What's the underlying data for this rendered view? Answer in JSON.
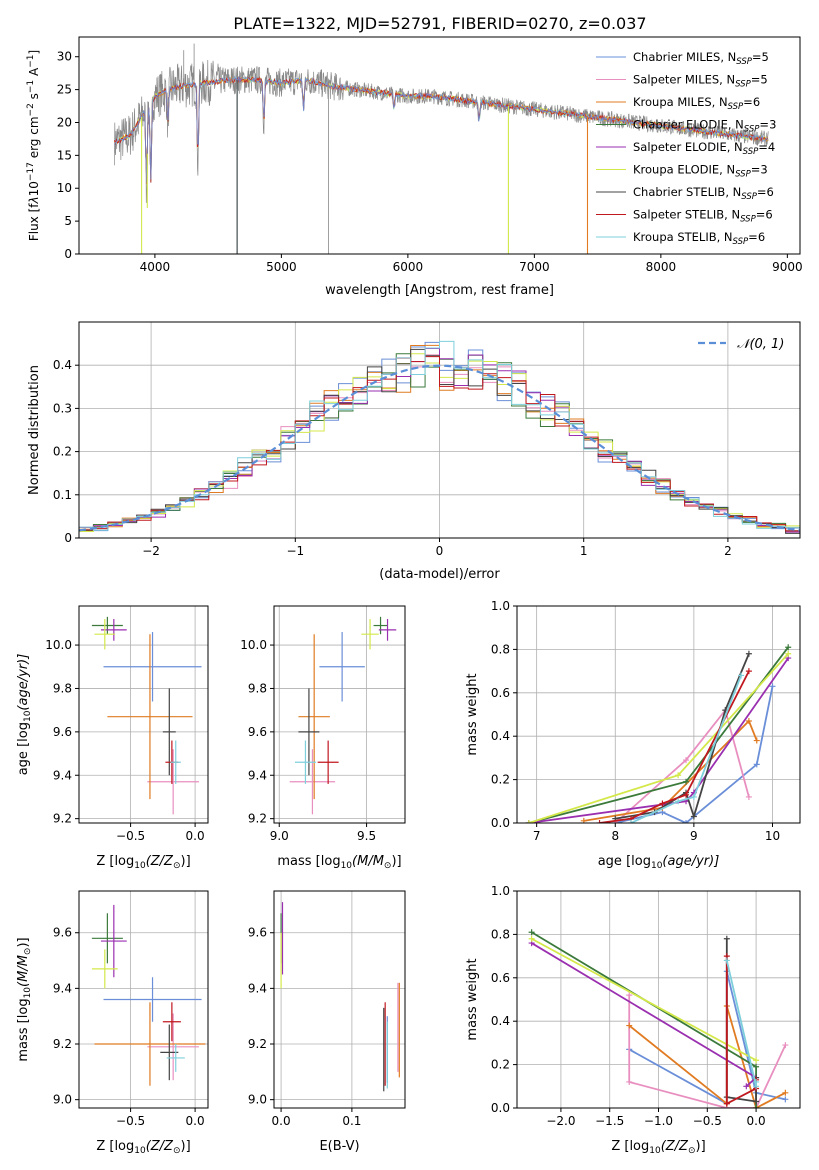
{
  "figure": {
    "title": "PLATE=1322, MJD=52791, FIBERID=0270, z=0.037"
  },
  "colors": {
    "models": [
      "#6a8fd8",
      "#e88fbf",
      "#e07b22",
      "#3b7a3b",
      "#9a2fb0",
      "#d4e84a",
      "#444444",
      "#c0181f",
      "#7ecfdc"
    ],
    "data": "#888888",
    "gaussian": "#5a8fd8",
    "grid": "#b0b0b0"
  },
  "legend": {
    "models": [
      {
        "label": "Chabrier MILES, N",
        "nssp": "5"
      },
      {
        "label": "Salpeter MILES, N",
        "nssp": "5"
      },
      {
        "label": "Kroupa MILES, N",
        "nssp": "6"
      },
      {
        "label": "Chabrier ELODIE, N",
        "nssp": "3"
      },
      {
        "label": "Salpeter ELODIE, N",
        "nssp": "4"
      },
      {
        "label": "Kroupa ELODIE, N",
        "nssp": "3"
      },
      {
        "label": "Chabrier STELIB, N",
        "nssp": "6"
      },
      {
        "label": "Salpeter STELIB, N",
        "nssp": "6"
      },
      {
        "label": "Kroupa STELIB, N",
        "nssp": "6"
      }
    ],
    "nssp_sub": "SSP",
    "gaussian_label": "𝒩(0, 1)"
  },
  "chart_data": [
    {
      "id": "spectrum",
      "type": "line",
      "xlabel": "wavelength [Angstrom, rest frame]",
      "ylabel": "Flux [f",
      "ylabel_rest": "10",
      "ylabel_exp": "−17",
      "ylabel_units": " erg cm",
      "ylabel_units_exp": "−2",
      "ylabel_units2": " s",
      "ylabel_units2_exp": "−1",
      "ylabel_units3": " A",
      "ylabel_units3_exp": "−1",
      "ylabel_units4": "]",
      "xlim": [
        3400,
        9100
      ],
      "ylim": [
        0,
        33
      ],
      "xticks": [
        4000,
        5000,
        6000,
        7000,
        8000,
        9000
      ],
      "yticks": [
        0,
        5,
        10,
        15,
        20,
        25,
        30
      ],
      "continuum": [
        [
          3680,
          17
        ],
        [
          3800,
          18
        ],
        [
          3900,
          21
        ],
        [
          4000,
          24
        ],
        [
          4100,
          25
        ],
        [
          4200,
          25.5
        ],
        [
          4400,
          26
        ],
        [
          4600,
          26.5
        ],
        [
          4800,
          26.5
        ],
        [
          5000,
          26
        ],
        [
          5200,
          26.5
        ],
        [
          5400,
          25.5
        ],
        [
          5600,
          25
        ],
        [
          5800,
          24.5
        ],
        [
          6000,
          24
        ],
        [
          6200,
          24
        ],
        [
          6400,
          23.5
        ],
        [
          6600,
          23
        ],
        [
          6800,
          22.5
        ],
        [
          7000,
          22
        ],
        [
          7200,
          21.5
        ],
        [
          7400,
          21
        ],
        [
          7600,
          20.5
        ],
        [
          7800,
          20
        ],
        [
          8000,
          19.5
        ],
        [
          8200,
          19
        ],
        [
          8400,
          18.5
        ],
        [
          8600,
          18
        ],
        [
          8850,
          17.5
        ]
      ],
      "absorptions": [
        [
          3934,
          10
        ],
        [
          3968,
          11
        ],
        [
          4102,
          20
        ],
        [
          4340,
          14
        ],
        [
          4861,
          20
        ],
        [
          5175,
          22
        ],
        [
          5890,
          22
        ],
        [
          6563,
          20
        ]
      ],
      "model_dropouts": [
        [
          3895,
          0,
          5
        ],
        [
          3940,
          7,
          5
        ],
        [
          4650,
          0,
          8
        ],
        [
          4650,
          0,
          6
        ],
        [
          6795,
          0,
          5
        ],
        [
          7420,
          0,
          2
        ]
      ],
      "data_spikes": [
        [
          5372,
          0
        ],
        [
          4228,
          31
        ],
        [
          4310,
          32
        ]
      ]
    },
    {
      "id": "residuals",
      "type": "histogram",
      "xlabel": "(data-model)/error",
      "ylabel": "Normed distribution",
      "xlim": [
        -2.5,
        2.5
      ],
      "ylim": [
        0,
        0.5
      ],
      "xticks": [
        -2,
        -1,
        0,
        1,
        2
      ],
      "xtick_labels": [
        "−2",
        "−1",
        "0",
        "1",
        "2"
      ],
      "yticks": [
        0,
        0.1,
        0.2,
        0.3,
        0.4
      ],
      "bin_width": 0.1,
      "gaussian": {
        "mean": 0,
        "sigma": 1
      }
    },
    {
      "id": "age_vs_Z",
      "type": "scatter",
      "xlabel": "Z [log",
      "xlabel_sub": "10",
      "xlabel_rest": "(Z/Z",
      "xlabel_end": ")]",
      "ylabel": "age  [log",
      "ylabel_sub": "10",
      "ylabel_rest": "(age/yr)]",
      "xlim": [
        -0.9,
        0.1
      ],
      "ylim": [
        9.18,
        10.18
      ],
      "xticks": [
        -0.5,
        0.0
      ],
      "xtick_labels": [
        "−0.5",
        "0.0"
      ],
      "yticks": [
        9.2,
        9.4,
        9.6,
        9.8,
        10.0
      ],
      "points": [
        {
          "m": 0,
          "x": -0.33,
          "y": 9.9,
          "ex": 0.38,
          "ey": 0.16
        },
        {
          "m": 1,
          "x": -0.17,
          "y": 9.37,
          "ex": 0.2,
          "ey": 0.15
        },
        {
          "m": 2,
          "x": -0.35,
          "y": 9.67,
          "ex": 0.33,
          "ey": 0.38
        },
        {
          "m": 3,
          "x": -0.68,
          "y": 10.09,
          "ex": 0.12,
          "ey": 0.04
        },
        {
          "m": 4,
          "x": -0.63,
          "y": 10.07,
          "ex": 0.1,
          "ey": 0.05
        },
        {
          "m": 5,
          "x": -0.7,
          "y": 10.05,
          "ex": 0.08,
          "ey": 0.07
        },
        {
          "m": 6,
          "x": -0.2,
          "y": 9.6,
          "ex": 0.05,
          "ey": 0.2
        },
        {
          "m": 7,
          "x": -0.18,
          "y": 9.46,
          "ex": 0.05,
          "ey": 0.1
        },
        {
          "m": 8,
          "x": -0.15,
          "y": 9.46,
          "ex": 0.04,
          "ey": 0.1
        }
      ]
    },
    {
      "id": "age_vs_mass",
      "type": "scatter",
      "xlabel": "mass [log",
      "xlabel_sub": "10",
      "xlabel_rest": "(M/M",
      "xlabel_end": ")]",
      "xlim": [
        8.97,
        9.72
      ],
      "ylim": [
        9.18,
        10.18
      ],
      "xticks": [
        9.0,
        9.5
      ],
      "xtick_labels": [
        "9.0",
        "9.5"
      ],
      "yticks": [
        9.2,
        9.4,
        9.6,
        9.8,
        10.0
      ],
      "points": [
        {
          "m": 0,
          "x": 9.36,
          "y": 9.9,
          "ex": 0.0,
          "ey": 0.16
        },
        {
          "m": 1,
          "x": 9.19,
          "y": 9.37,
          "ex": 0.0,
          "ey": 0.15
        },
        {
          "m": 2,
          "x": 9.2,
          "y": 9.67,
          "ex": 0.0,
          "ey": 0.38
        },
        {
          "m": 3,
          "x": 9.58,
          "y": 10.09,
          "ex": 0.0,
          "ey": 0.04
        },
        {
          "m": 4,
          "x": 9.62,
          "y": 10.07,
          "ex": 0.0,
          "ey": 0.05
        },
        {
          "m": 5,
          "x": 9.52,
          "y": 10.05,
          "ex": 0.0,
          "ey": 0.07
        },
        {
          "m": 6,
          "x": 9.17,
          "y": 9.6,
          "ex": 0.0,
          "ey": 0.2
        },
        {
          "m": 7,
          "x": 9.28,
          "y": 9.46,
          "ex": 0.0,
          "ey": 0.1
        },
        {
          "m": 8,
          "x": 9.15,
          "y": 9.46,
          "ex": 0.0,
          "ey": 0.1
        }
      ],
      "xerr_scale": [
        0.13,
        0.13,
        0.09,
        0.04,
        0.05,
        0.05,
        0.06,
        0.06,
        0.06
      ]
    },
    {
      "id": "mass_weight_vs_age",
      "type": "line",
      "xlabel": "age  [log",
      "xlabel_sub": "10",
      "xlabel_rest": "(age/yr)]",
      "ylabel": "mass weight",
      "xlim": [
        6.75,
        10.35
      ],
      "ylim": [
        0,
        1.0
      ],
      "xticks": [
        7,
        8,
        9,
        10
      ],
      "yticks": [
        0,
        0.2,
        0.4,
        0.6,
        0.8,
        1.0
      ],
      "series": [
        {
          "m": 0,
          "x": [
            8.0,
            8.6,
            8.9,
            9.8,
            10.0
          ],
          "y": [
            0.0,
            0.05,
            0.0,
            0.27,
            0.63
          ]
        },
        {
          "m": 1,
          "x": [
            8.0,
            8.9,
            9.4,
            9.7
          ],
          "y": [
            0.0,
            0.29,
            0.52,
            0.12
          ]
        },
        {
          "m": 2,
          "x": [
            7.6,
            8.6,
            9.7,
            9.8
          ],
          "y": [
            0.01,
            0.07,
            0.47,
            0.38
          ]
        },
        {
          "m": 3,
          "x": [
            6.9,
            8.9,
            10.2
          ],
          "y": [
            0.0,
            0.19,
            0.81
          ]
        },
        {
          "m": 4,
          "x": [
            6.9,
            8.9,
            9.0,
            10.2
          ],
          "y": [
            0.0,
            0.1,
            0.14,
            0.76
          ]
        },
        {
          "m": 5,
          "x": [
            6.9,
            8.8,
            10.2
          ],
          "y": [
            0.0,
            0.22,
            0.78
          ]
        },
        {
          "m": 6,
          "x": [
            8.0,
            8.5,
            8.9,
            9.0,
            9.4,
            9.7
          ],
          "y": [
            0.02,
            0.05,
            0.14,
            0.03,
            0.52,
            0.78
          ]
        },
        {
          "m": 7,
          "x": [
            7.8,
            8.2,
            8.6,
            8.9,
            9.7
          ],
          "y": [
            0.0,
            0.02,
            0.09,
            0.13,
            0.7
          ]
        },
        {
          "m": 8,
          "x": [
            8.2,
            8.8,
            9.0,
            9.6
          ],
          "y": [
            0.0,
            0.1,
            0.12,
            0.68
          ]
        }
      ]
    },
    {
      "id": "mass_vs_Z",
      "type": "scatter",
      "xlabel": "Z [log",
      "xlabel_sub": "10",
      "xlabel_rest": "(Z/Z",
      "xlabel_end": ")]",
      "ylabel": "mass [log",
      "ylabel_sub": "10",
      "ylabel_rest": "(M/M",
      "ylabel_end": ")]",
      "xlim": [
        -0.9,
        0.1
      ],
      "ylim": [
        8.97,
        9.75
      ],
      "xticks": [
        -0.5,
        0.0
      ],
      "xtick_labels": [
        "−0.5",
        "0.0"
      ],
      "yticks": [
        9.0,
        9.2,
        9.4,
        9.6
      ],
      "points": [
        {
          "m": 0,
          "x": -0.33,
          "y": 9.36,
          "ex": 0.38,
          "ey": 0.08
        },
        {
          "m": 1,
          "x": -0.17,
          "y": 9.19,
          "ex": 0.2,
          "ey": 0.12
        },
        {
          "m": 2,
          "x": -0.35,
          "y": 9.2,
          "ex": 0.43,
          "ey": 0.15
        },
        {
          "m": 3,
          "x": -0.68,
          "y": 9.58,
          "ex": 0.12,
          "ey": 0.09
        },
        {
          "m": 4,
          "x": -0.63,
          "y": 9.57,
          "ex": 0.1,
          "ey": 0.13
        },
        {
          "m": 5,
          "x": -0.7,
          "y": 9.47,
          "ex": 0.1,
          "ey": 0.07
        },
        {
          "m": 6,
          "x": -0.2,
          "y": 9.17,
          "ex": 0.07,
          "ey": 0.1
        },
        {
          "m": 7,
          "x": -0.18,
          "y": 9.28,
          "ex": 0.07,
          "ey": 0.07
        },
        {
          "m": 8,
          "x": -0.15,
          "y": 9.15,
          "ex": 0.07,
          "ey": 0.05
        }
      ]
    },
    {
      "id": "mass_vs_EBV",
      "type": "scatter",
      "xlabel": "E(B-V)",
      "xlim": [
        -0.01,
        0.175
      ],
      "ylim": [
        8.97,
        9.75
      ],
      "xticks": [
        0.0,
        0.1
      ],
      "yticks": [
        9.0,
        9.2,
        9.4,
        9.6
      ],
      "points": [
        {
          "m": 0,
          "x": 0.15,
          "y": 9.18,
          "ey": 0.12
        },
        {
          "m": 1,
          "x": 0.165,
          "y": 9.26,
          "ey": 0.16
        },
        {
          "m": 2,
          "x": 0.167,
          "y": 9.25,
          "ey": 0.17
        },
        {
          "m": 3,
          "x": 0.0,
          "y": 9.58,
          "ey": 0.09
        },
        {
          "m": 4,
          "x": 0.002,
          "y": 9.58,
          "ey": 0.13
        },
        {
          "m": 5,
          "x": 0.0,
          "y": 9.5,
          "ey": 0.1
        },
        {
          "m": 6,
          "x": 0.145,
          "y": 9.18,
          "ey": 0.15
        },
        {
          "m": 7,
          "x": 0.147,
          "y": 9.2,
          "ey": 0.15
        },
        {
          "m": 8,
          "x": 0.15,
          "y": 9.16,
          "ey": 0.12
        }
      ]
    },
    {
      "id": "mass_weight_vs_Z",
      "type": "line",
      "xlabel": "Z [log",
      "xlabel_sub": "10",
      "xlabel_rest": "(Z/Z",
      "xlabel_end": ")]",
      "ylabel": "mass weight",
      "xlim": [
        -2.45,
        0.45
      ],
      "ylim": [
        0,
        1.0
      ],
      "xticks": [
        -2.0,
        -1.5,
        -1.0,
        -0.5,
        0.0
      ],
      "xtick_labels": [
        "−2.0",
        "−1.5",
        "−1.0",
        "−0.5",
        "0.0"
      ],
      "yticks": [
        0,
        0.2,
        0.4,
        0.6,
        0.8,
        1.0
      ],
      "series": [
        {
          "m": 0,
          "x": [
            -1.3,
            -0.3,
            -0.3,
            0.0,
            0.3
          ],
          "y": [
            0.27,
            0.02,
            0.63,
            0.07,
            0.04
          ]
        },
        {
          "m": 1,
          "x": [
            -1.3,
            -1.3,
            -0.3,
            0.0,
            0.3
          ],
          "y": [
            0.52,
            0.12,
            0.0,
            0.0,
            0.29
          ]
        },
        {
          "m": 2,
          "x": [
            -1.3,
            -0.3,
            -0.3,
            0.0,
            0.3
          ],
          "y": [
            0.38,
            0.02,
            0.47,
            0.0,
            0.07
          ]
        },
        {
          "m": 3,
          "x": [
            -2.3,
            0.0,
            0.0
          ],
          "y": [
            0.81,
            0.19,
            0.0
          ]
        },
        {
          "m": 4,
          "x": [
            -2.3,
            0.0,
            -0.1
          ],
          "y": [
            0.76,
            0.14,
            0.1
          ]
        },
        {
          "m": 5,
          "x": [
            -2.3,
            0.0
          ],
          "y": [
            0.78,
            0.22
          ]
        },
        {
          "m": 6,
          "x": [
            -0.3,
            -0.3,
            0.0,
            0.0
          ],
          "y": [
            0.78,
            0.05,
            0.03,
            0.14
          ]
        },
        {
          "m": 7,
          "x": [
            -0.3,
            -0.3,
            0.0,
            0.0
          ],
          "y": [
            0.7,
            0.02,
            0.09,
            0.13
          ]
        },
        {
          "m": 8,
          "x": [
            -0.3,
            0.0,
            0.0
          ],
          "y": [
            0.68,
            0.1,
            0.12
          ]
        }
      ]
    }
  ]
}
